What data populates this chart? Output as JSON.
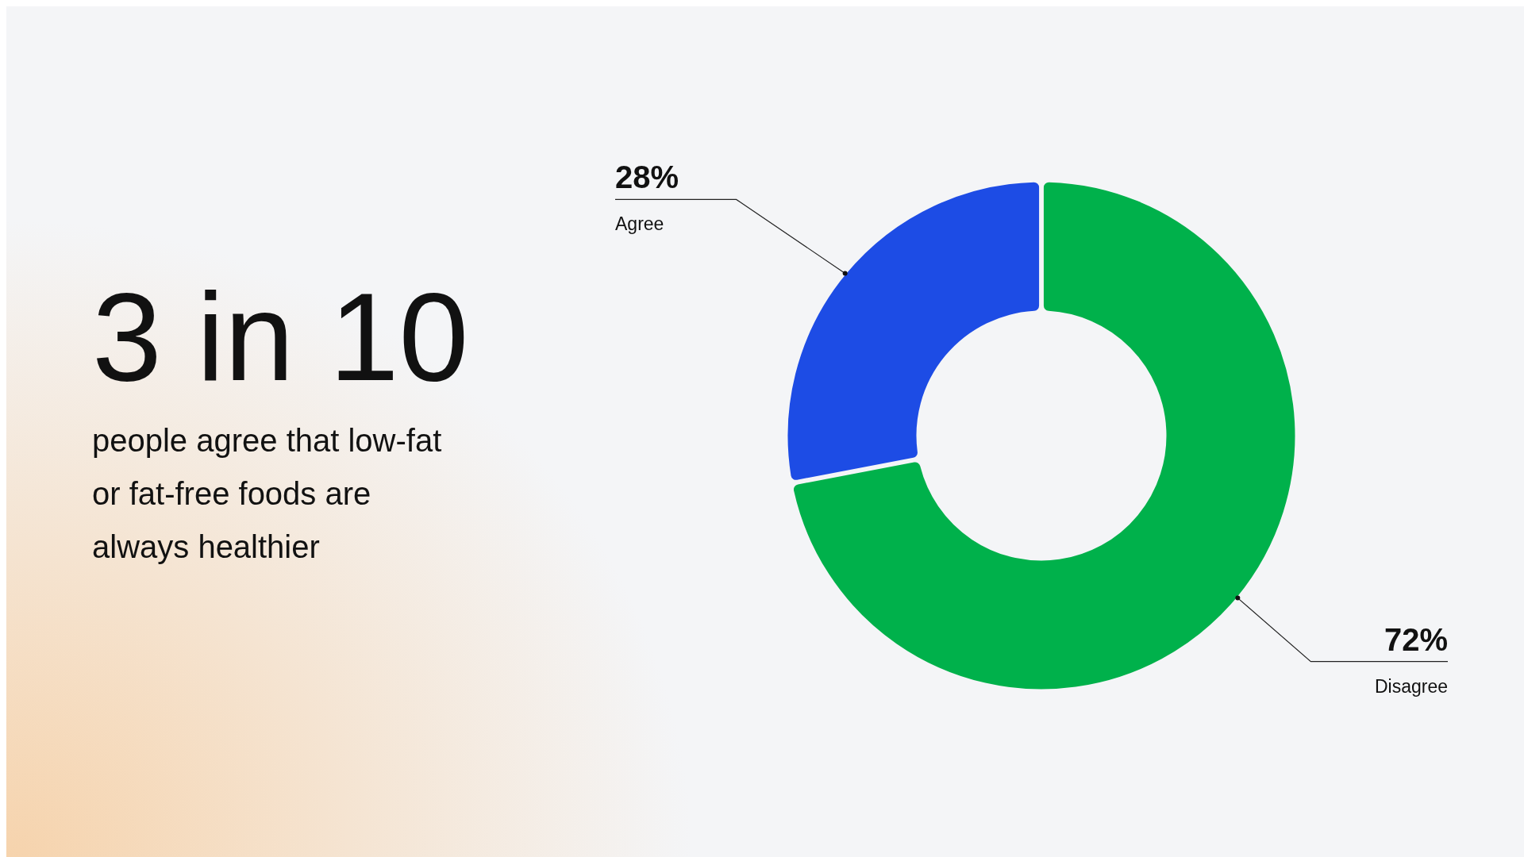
{
  "chart_data": {
    "type": "donut",
    "title": "3 in 10",
    "subtitle": "people agree that low-fat or fat-free foods are always healthier",
    "categories": [
      "Agree",
      "Disagree"
    ],
    "values": [
      28,
      72
    ],
    "colors": [
      "#1d4ce5",
      "#00b14b"
    ],
    "value_labels": [
      "28%",
      "72%"
    ]
  }
}
